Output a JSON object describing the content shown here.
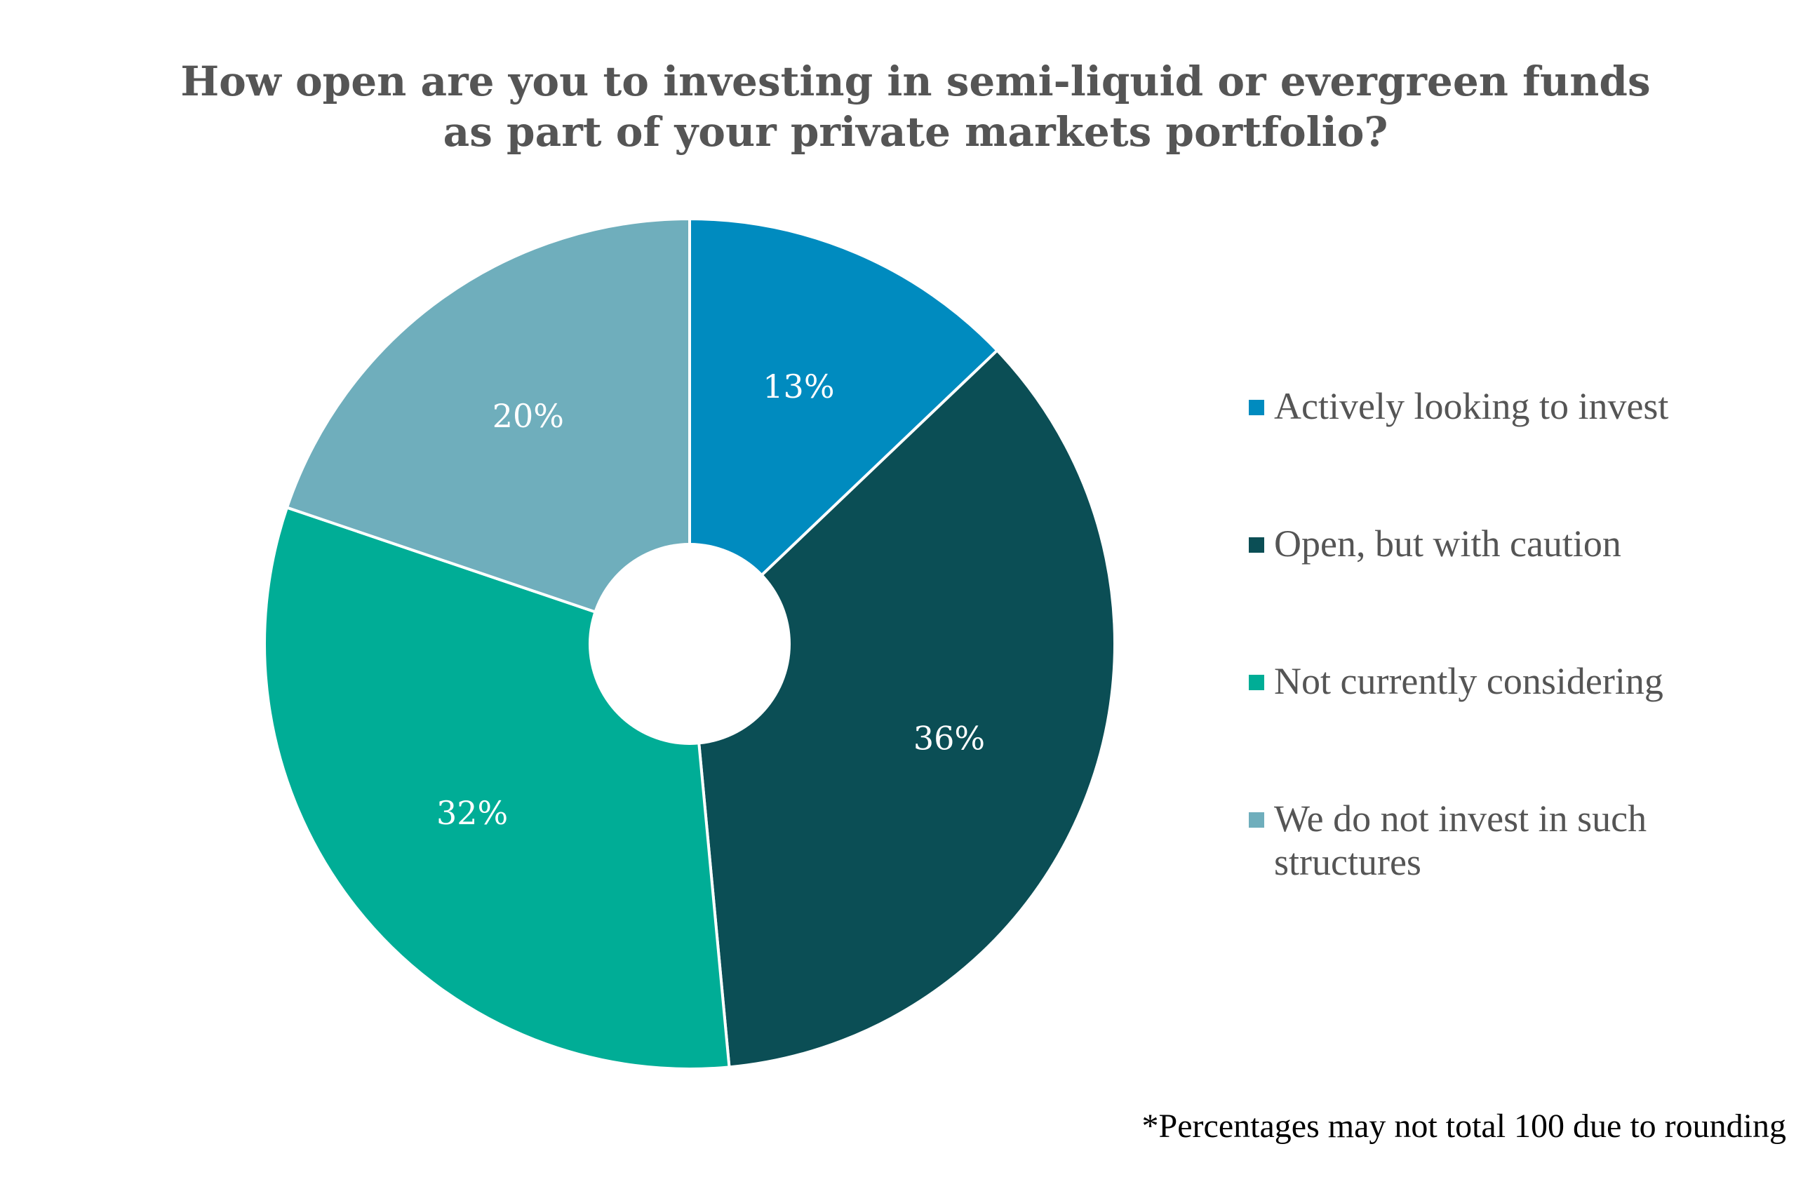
{
  "chart_data": {
    "type": "pie",
    "title_lines": [
      "How open are you to investing in semi-liquid or evergreen funds",
      "as part of your private markets portfolio?"
    ],
    "donut": true,
    "categories": [
      "Actively looking to invest",
      "Open, but with caution",
      "Not currently considering",
      "We do not invest in such structures"
    ],
    "values": [
      13,
      36,
      32,
      20
    ],
    "labels": [
      "13%",
      "36%",
      "32%",
      "20%"
    ],
    "colors": [
      "#008BBF",
      "#0B4E55",
      "#00AD96",
      "#6FAEBC"
    ],
    "label_color": "#FFFFFF",
    "legend_position": "right",
    "footnote": "*Percentages may not total 100 due to rounding"
  }
}
